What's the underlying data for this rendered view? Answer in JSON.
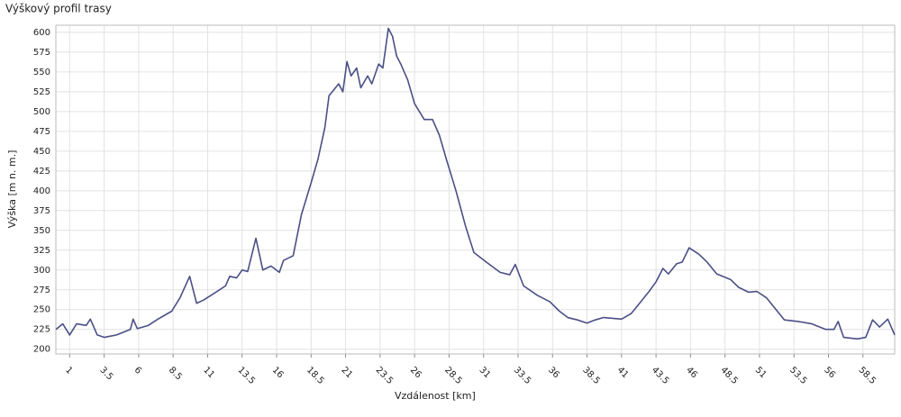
{
  "chart_data": {
    "type": "line",
    "title": "Výškový profil trasy",
    "x_label": "Vzdálenost [km]",
    "y_label": "Výška [m n. m.]",
    "x": [
      0,
      0.5,
      1,
      1.5,
      2.2,
      2.5,
      3,
      3.5,
      4.4,
      5.4,
      5.6,
      5.9,
      6.7,
      7.4,
      8.4,
      9,
      9.7,
      10.2,
      10.7,
      11.6,
      12.3,
      12.6,
      13.1,
      13.5,
      13.9,
      14.5,
      15,
      15.6,
      16.2,
      16.5,
      17.2,
      17.8,
      18.5,
      19,
      19.5,
      19.8,
      20.5,
      20.8,
      21.1,
      21.4,
      21.8,
      22.1,
      22.6,
      22.9,
      23.4,
      23.7,
      24.1,
      24.4,
      24.7,
      25,
      25.5,
      26,
      26.7,
      27.3,
      27.8,
      28.3,
      29,
      29.7,
      30.3,
      31.2,
      32.2,
      32.9,
      33.3,
      33.9,
      34.9,
      35.8,
      36.5,
      37.1,
      37.8,
      38.5,
      39.1,
      39.7,
      41,
      41.7,
      42.4,
      43,
      43.5,
      44,
      44.4,
      45,
      45.4,
      45.9,
      46.6,
      47.2,
      47.9,
      48.9,
      49.5,
      50.2,
      50.8,
      51.5,
      52.2,
      52.8,
      53.8,
      54.8,
      55.8,
      56.4,
      56.7,
      57.1,
      58.1,
      58.7,
      59.2,
      59.7,
      60.3,
      60.8
    ],
    "series": [
      {
        "name": "Výška",
        "color": "#4b4f86",
        "values": [
          225,
          232,
          218,
          232,
          230,
          238,
          218,
          215,
          218,
          225,
          238,
          226,
          230,
          238,
          248,
          265,
          292,
          258,
          262,
          272,
          280,
          292,
          290,
          300,
          298,
          340,
          300,
          305,
          297,
          312,
          318,
          370,
          410,
          440,
          480,
          520,
          535,
          525,
          563,
          545,
          555,
          530,
          545,
          535,
          560,
          555,
          605,
          595,
          570,
          560,
          540,
          510,
          490,
          490,
          470,
          440,
          400,
          355,
          322,
          310,
          297,
          294,
          307,
          280,
          268,
          260,
          248,
          240,
          237,
          233,
          237,
          240,
          238,
          245,
          260,
          273,
          285,
          302,
          295,
          308,
          310,
          328,
          320,
          310,
          295,
          288,
          278,
          272,
          273,
          265,
          250,
          237,
          235,
          232,
          225,
          225,
          235,
          215,
          213,
          215,
          237,
          228,
          238,
          218
        ]
      }
    ],
    "xlim": [
      0,
      60.8
    ],
    "ylim": [
      194,
      609
    ],
    "xticks": [
      1,
      3.5,
      6,
      8.5,
      11,
      13.5,
      16,
      18.5,
      21,
      23.5,
      26,
      28.5,
      31,
      33.5,
      36,
      38.5,
      41,
      43.5,
      46,
      48.5,
      51,
      53.5,
      56,
      58.5
    ],
    "yticks": [
      200,
      225,
      250,
      275,
      300,
      325,
      350,
      375,
      400,
      425,
      450,
      475,
      500,
      525,
      550,
      575,
      600
    ],
    "grid": true
  }
}
